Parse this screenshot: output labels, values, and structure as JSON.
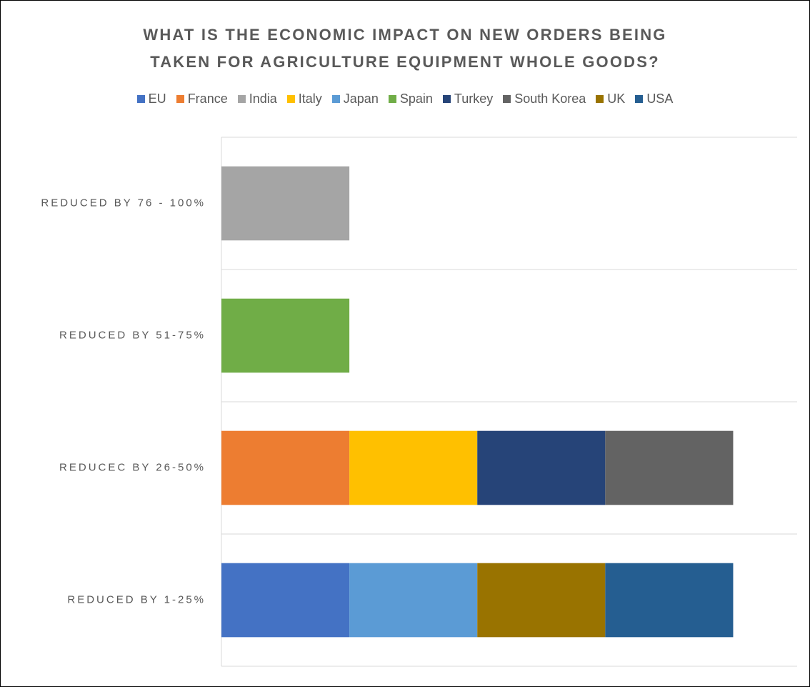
{
  "chart_data": {
    "type": "stacked-bar-horizontal",
    "title": [
      "WHAT IS THE ECONOMIC IMPACT ON NEW ORDERS BEING",
      "TAKEN FOR AGRICULTURE EQUIPMENT WHOLE GOODS?"
    ],
    "categories": [
      "REDUCED BY 76 - 100%",
      "REDUCED BY 51-75%",
      "REDUCEC BY 26-50%",
      "REDUCED BY 1-25%"
    ],
    "series": [
      {
        "name": "EU",
        "color": "#4472c4",
        "values": [
          null,
          null,
          null,
          1
        ]
      },
      {
        "name": "France",
        "color": "#ed7d31",
        "values": [
          null,
          null,
          1,
          null
        ]
      },
      {
        "name": "India",
        "color": "#a5a5a5",
        "values": [
          1,
          null,
          null,
          null
        ]
      },
      {
        "name": "Italy",
        "color": "#ffc000",
        "values": [
          null,
          null,
          1,
          null
        ]
      },
      {
        "name": "Japan",
        "color": "#5b9bd5",
        "values": [
          null,
          null,
          null,
          1
        ]
      },
      {
        "name": "Spain",
        "color": "#70ad47",
        "values": [
          null,
          1,
          null,
          null
        ]
      },
      {
        "name": "Turkey",
        "color": "#264478",
        "values": [
          null,
          null,
          1,
          null
        ]
      },
      {
        "name": "South Korea",
        "color": "#636363",
        "values": [
          null,
          null,
          1,
          null
        ]
      },
      {
        "name": "UK",
        "color": "#997300",
        "values": [
          null,
          null,
          null,
          1
        ]
      },
      {
        "name": "USA",
        "color": "#255e91",
        "values": [
          null,
          null,
          null,
          1
        ]
      }
    ],
    "xlim": [
      0,
      4.5
    ],
    "legend": "top"
  }
}
